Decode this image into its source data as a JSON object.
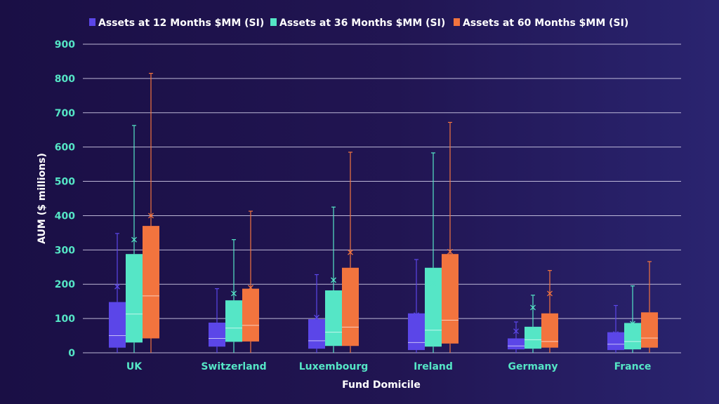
{
  "chart_data": {
    "type": "box",
    "xlabel": "Fund Domicile",
    "ylabel": "AUM ($ millions)",
    "ylim": [
      0,
      900
    ],
    "yticks": [
      0,
      100,
      200,
      300,
      400,
      500,
      600,
      700,
      800,
      900
    ],
    "grid": true,
    "legend_position": "top",
    "categories": [
      "UK",
      "Switzerland",
      "Luxembourg",
      "Ireland",
      "Germany",
      "France"
    ],
    "series": [
      {
        "name": "Assets at 12 Months $MM (SI)",
        "color": "#5b46e8",
        "boxes": [
          {
            "min": 0,
            "q1": 15,
            "median": 50,
            "q3": 148,
            "max": 348,
            "mean": 193
          },
          {
            "min": 0,
            "q1": 18,
            "median": 42,
            "q3": 88,
            "max": 187,
            "mean": 75
          },
          {
            "min": 0,
            "q1": 12,
            "median": 35,
            "q3": 98,
            "max": 228,
            "mean": 103
          },
          {
            "min": 0,
            "q1": 8,
            "median": 30,
            "q3": 115,
            "max": 272,
            "mean": 110
          },
          {
            "min": 0,
            "q1": 10,
            "median": 20,
            "q3": 42,
            "max": 90,
            "mean": 63
          },
          {
            "min": 0,
            "q1": 8,
            "median": 25,
            "q3": 60,
            "max": 138,
            "mean": 55
          }
        ]
      },
      {
        "name": "Assets at 36 Months $MM (SI)",
        "color": "#55e6c6",
        "boxes": [
          {
            "min": 0,
            "q1": 30,
            "median": 113,
            "q3": 288,
            "max": 663,
            "mean": 330
          },
          {
            "min": 0,
            "q1": 32,
            "median": 72,
            "q3": 153,
            "max": 330,
            "mean": 173
          },
          {
            "min": 0,
            "q1": 20,
            "median": 60,
            "q3": 182,
            "max": 425,
            "mean": 212
          },
          {
            "min": 0,
            "q1": 18,
            "median": 66,
            "q3": 248,
            "max": 583,
            "mean": 202
          },
          {
            "min": 0,
            "q1": 12,
            "median": 38,
            "q3": 76,
            "max": 168,
            "mean": 132
          },
          {
            "min": 0,
            "q1": 10,
            "median": 33,
            "q3": 87,
            "max": 195,
            "mean": 85
          }
        ]
      },
      {
        "name": "Assets at 60 Months $MM (SI)",
        "color": "#f2743e",
        "boxes": [
          {
            "min": 0,
            "q1": 42,
            "median": 166,
            "q3": 370,
            "max": 815,
            "mean": 400
          },
          {
            "min": 0,
            "q1": 33,
            "median": 80,
            "q3": 187,
            "max": 413,
            "mean": 190
          },
          {
            "min": 0,
            "q1": 20,
            "median": 75,
            "q3": 248,
            "max": 585,
            "mean": 293
          },
          {
            "min": 0,
            "q1": 27,
            "median": 95,
            "q3": 288,
            "max": 672,
            "mean": 295
          },
          {
            "min": 0,
            "q1": 15,
            "median": 33,
            "q3": 115,
            "max": 240,
            "mean": 173
          },
          {
            "min": 0,
            "q1": 15,
            "median": 43,
            "q3": 118,
            "max": 266,
            "mean": 98
          }
        ]
      }
    ]
  }
}
